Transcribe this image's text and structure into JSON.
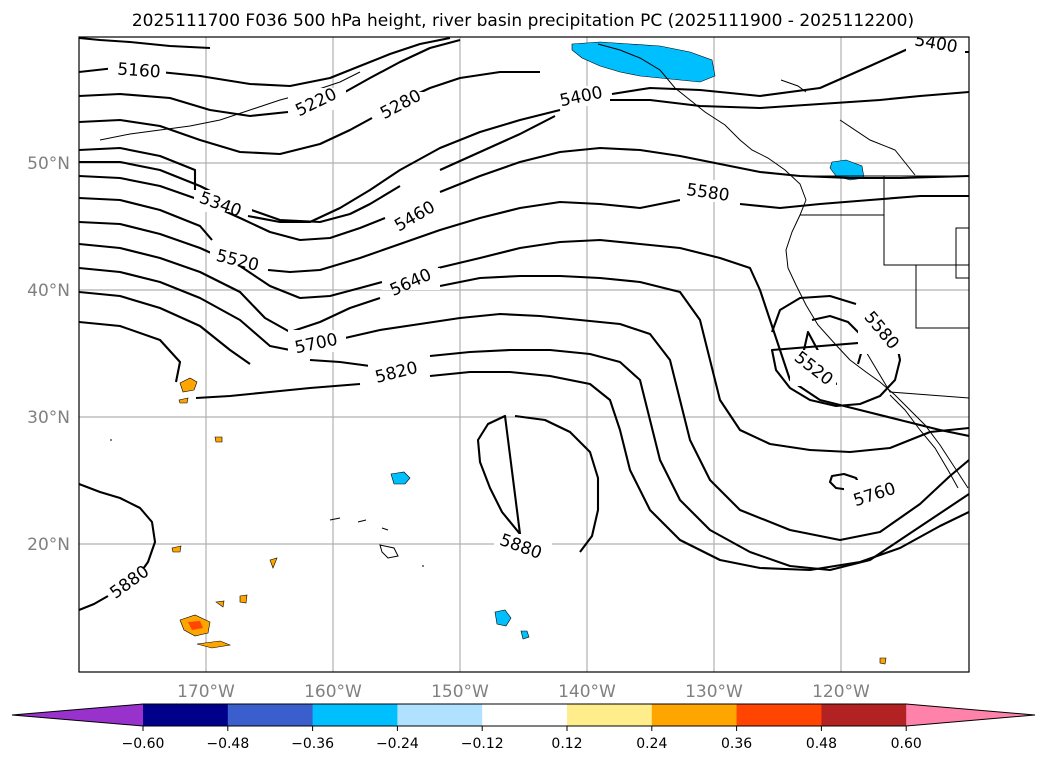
{
  "chart_data": {
    "type": "contour-map",
    "title": "2025111700 F036 500 hPa height, river basin precipitation PC (2025111900 - 2025112200)",
    "lon_ticks": [
      "170°W",
      "160°W",
      "150°W",
      "140°W",
      "130°W",
      "120°W"
    ],
    "lat_ticks": [
      "50°N",
      "40°N",
      "30°N",
      "20°N"
    ],
    "contour_labels": [
      "5160",
      "5220",
      "5280",
      "5400",
      "5400",
      "5340",
      "5460",
      "5520",
      "5580",
      "5640",
      "5700",
      "5820",
      "5880",
      "5880",
      "5760",
      "5580",
      "5520"
    ],
    "colorbar": {
      "ticks": [
        "−0.60",
        "−0.48",
        "−0.36",
        "−0.24",
        "−0.12",
        "0.12",
        "0.24",
        "0.36",
        "0.48",
        "0.60"
      ],
      "colors": [
        "#9932cc",
        "#00008b",
        "#3a5fcd",
        "#00bfff",
        "#b0e2ff",
        "#ffffff",
        "#ffec8b",
        "#ffa500",
        "#ff4500",
        "#b22222",
        "#ff82ab"
      ]
    }
  }
}
